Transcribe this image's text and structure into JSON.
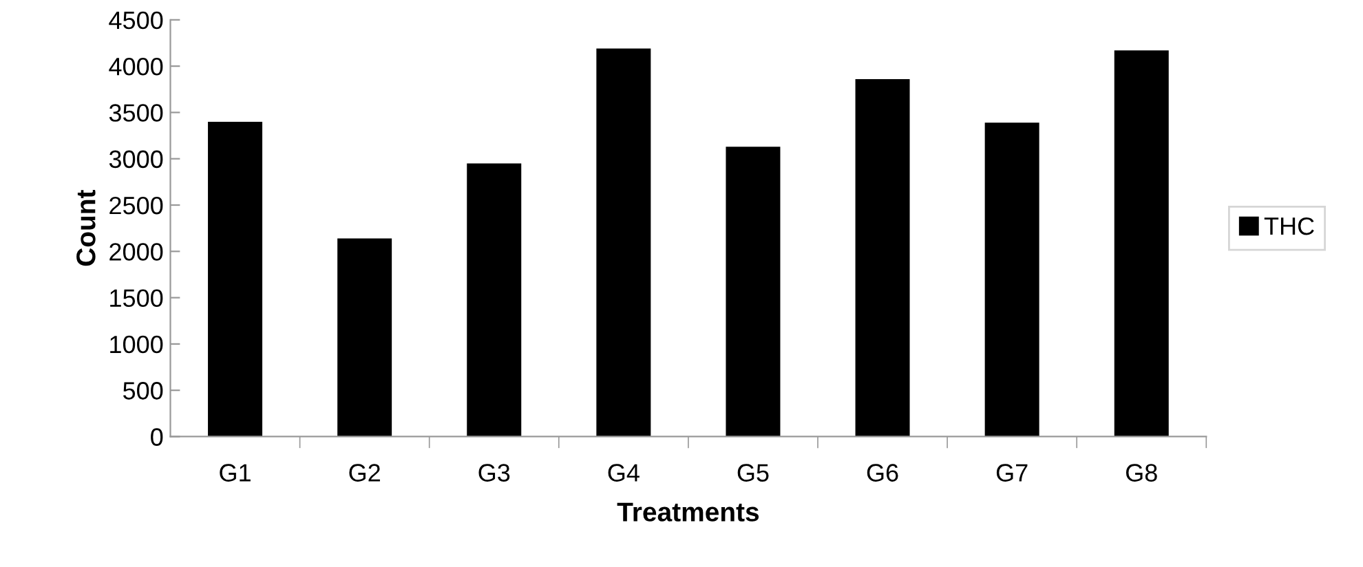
{
  "chart_data": {
    "type": "bar",
    "xlabel": "Treatments",
    "ylabel": "Count",
    "categories": [
      "G1",
      "G2",
      "G3",
      "G4",
      "G5",
      "G6",
      "G7",
      "G8"
    ],
    "series": [
      {
        "name": "THC",
        "color": "#000000",
        "values": [
          3400,
          2140,
          2950,
          4190,
          3130,
          3860,
          3390,
          4170
        ]
      }
    ],
    "ylim": [
      0,
      4500
    ],
    "yticks": [
      0,
      500,
      1000,
      1500,
      2000,
      2500,
      3000,
      3500,
      4000,
      4500
    ],
    "grid": false,
    "legend": "right"
  }
}
